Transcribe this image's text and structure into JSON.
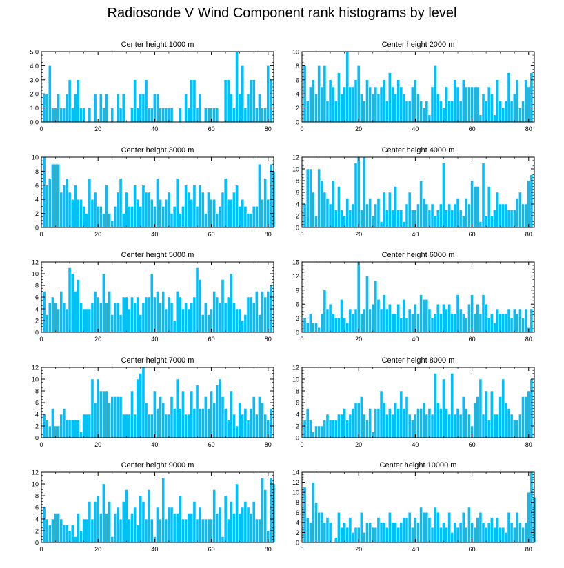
{
  "title": "Radiosonde V Wind Component rank histograms by level",
  "colors": {
    "bar": "#00bfff",
    "bar_edge": "#ffffff",
    "frame": "#000000"
  },
  "chart_data": [
    {
      "type": "bar",
      "title": "Center height 1000 m",
      "xlim": [
        0,
        82
      ],
      "ylim": [
        0,
        5
      ],
      "yticks": [
        0,
        1,
        2,
        3,
        4,
        5
      ],
      "ytick_labels": [
        "0.0",
        "1.0",
        "2.0",
        "3.0",
        "4.0",
        "5.0"
      ],
      "xticks": [
        0,
        20,
        40,
        60,
        80
      ],
      "values": [
        2,
        2,
        4,
        1,
        1,
        2,
        1,
        1,
        2,
        3,
        1,
        2,
        3,
        1,
        1,
        0,
        1,
        0,
        2,
        0,
        2,
        1,
        2,
        0,
        1,
        0,
        2,
        1,
        2,
        0,
        0,
        1,
        3,
        1,
        2,
        2,
        3,
        1,
        1,
        2,
        2,
        1,
        1,
        1,
        1,
        1,
        0,
        0,
        1,
        0,
        2,
        1,
        3,
        3,
        1,
        2,
        0,
        1,
        1,
        1,
        1,
        1,
        0,
        0,
        3,
        3,
        2,
        1,
        5,
        2,
        4,
        1,
        2,
        3,
        3,
        1,
        2,
        1,
        1,
        4,
        3
      ]
    },
    {
      "type": "bar",
      "title": "Center height 2000 m",
      "xlim": [
        0,
        82
      ],
      "ylim": [
        0,
        10
      ],
      "yticks": [
        0,
        2,
        4,
        6,
        8,
        10
      ],
      "ytick_labels": [
        "0",
        "2",
        "4",
        "6",
        "8",
        "10"
      ],
      "xticks": [
        0,
        20,
        40,
        60,
        80
      ],
      "values": [
        8,
        3,
        5,
        6,
        4,
        8,
        5,
        8,
        3,
        6,
        5,
        3,
        7,
        4,
        5,
        10,
        5,
        5,
        6,
        8,
        4,
        3,
        6,
        5,
        4,
        5,
        4,
        5,
        6,
        3,
        7,
        5,
        4,
        6,
        5,
        4,
        3,
        3,
        5,
        6,
        4,
        3,
        2,
        3,
        1,
        5,
        8,
        4,
        3,
        2,
        5,
        3,
        3,
        6,
        5,
        3,
        6,
        5,
        5,
        5,
        5,
        5,
        1,
        4,
        3,
        5,
        4,
        1,
        6,
        3,
        2,
        3,
        7,
        3,
        4,
        6,
        2,
        3,
        6,
        5,
        7
      ]
    },
    {
      "type": "bar",
      "title": "Center height 3000 m",
      "xlim": [
        0,
        82
      ],
      "ylim": [
        0,
        10
      ],
      "yticks": [
        0,
        2,
        4,
        6,
        8,
        10
      ],
      "ytick_labels": [
        "0",
        "2",
        "4",
        "6",
        "8",
        "10"
      ],
      "xticks": [
        0,
        20,
        40,
        60,
        80
      ],
      "values": [
        10,
        6,
        7,
        9,
        9,
        9,
        5,
        6,
        7,
        5,
        4,
        6,
        4,
        4,
        3,
        2,
        7,
        4,
        5,
        3,
        3,
        2,
        6,
        2,
        1,
        3,
        5,
        7,
        2,
        5,
        3,
        3,
        6,
        4,
        3,
        6,
        5,
        5,
        4,
        3,
        7,
        4,
        3,
        4,
        5,
        2,
        3,
        7,
        2,
        3,
        6,
        5,
        4,
        6,
        3,
        6,
        5,
        2,
        5,
        4,
        4,
        2,
        3,
        5,
        7,
        4,
        4,
        5,
        6,
        3,
        4,
        3,
        2,
        2,
        3,
        3,
        9,
        4,
        7,
        4,
        9,
        8
      ]
    },
    {
      "type": "bar",
      "title": "Center height 4000 m",
      "xlim": [
        0,
        82
      ],
      "ylim": [
        0,
        12
      ],
      "yticks": [
        0,
        2,
        4,
        6,
        8,
        10,
        12
      ],
      "ytick_labels": [
        "0",
        "2",
        "4",
        "6",
        "8",
        "10",
        "12"
      ],
      "xticks": [
        0,
        20,
        40,
        60,
        80
      ],
      "values": [
        4,
        10,
        10,
        6,
        2,
        10,
        8,
        6,
        5,
        4,
        8,
        3,
        7,
        3,
        2,
        5,
        3,
        4,
        11,
        12,
        3,
        12,
        4,
        5,
        2,
        4,
        5,
        1,
        6,
        3,
        6,
        3,
        7,
        3,
        3,
        1,
        4,
        6,
        3,
        3,
        4,
        8,
        5,
        4,
        3,
        4,
        2,
        3,
        4,
        11,
        3,
        4,
        3,
        4,
        5,
        3,
        2,
        5,
        4,
        8,
        7,
        7,
        1,
        11,
        2,
        7,
        2,
        3,
        6,
        4,
        4,
        4,
        3,
        3,
        3,
        5,
        6,
        4,
        4,
        8,
        9
      ]
    },
    {
      "type": "bar",
      "title": "Center height 5000 m",
      "xlim": [
        0,
        82
      ],
      "ylim": [
        0,
        12
      ],
      "yticks": [
        0,
        2,
        4,
        6,
        8,
        10,
        12
      ],
      "ytick_labels": [
        "0",
        "2",
        "4",
        "6",
        "8",
        "10",
        "12"
      ],
      "xticks": [
        0,
        20,
        40,
        60,
        80
      ],
      "values": [
        7,
        3,
        5,
        6,
        5,
        4,
        7,
        5,
        4,
        11,
        10,
        7,
        9,
        5,
        4,
        4,
        4,
        5,
        7,
        6,
        5,
        10,
        5,
        7,
        3,
        5,
        5,
        3,
        6,
        6,
        4,
        6,
        5,
        6,
        3,
        5,
        6,
        6,
        10,
        6,
        7,
        5,
        7,
        4,
        6,
        5,
        2,
        7,
        6,
        4,
        5,
        4,
        5,
        6,
        11,
        9,
        3,
        5,
        3,
        4,
        7,
        6,
        5,
        9,
        5,
        6,
        10,
        5,
        4,
        4,
        2,
        3,
        6,
        6,
        5,
        7,
        3,
        7,
        6,
        7,
        8
      ]
    },
    {
      "type": "bar",
      "title": "Center height 6000 m",
      "xlim": [
        0,
        82
      ],
      "ylim": [
        0,
        15
      ],
      "yticks": [
        0,
        3,
        6,
        9,
        12,
        15
      ],
      "ytick_labels": [
        "0",
        "3",
        "6",
        "9",
        "12",
        "15"
      ],
      "xticks": [
        0,
        20,
        40,
        60,
        80
      ],
      "values": [
        3,
        2,
        4,
        2,
        2,
        1,
        4,
        9,
        5,
        6,
        4,
        3,
        3,
        7,
        3,
        2,
        5,
        4,
        5,
        15,
        4,
        5,
        12,
        5,
        6,
        11,
        7,
        5,
        8,
        5,
        6,
        4,
        4,
        6,
        3,
        7,
        3,
        5,
        4,
        6,
        4,
        8,
        7,
        7,
        5,
        3,
        4,
        6,
        4,
        6,
        5,
        6,
        4,
        4,
        8,
        5,
        4,
        3,
        6,
        8,
        4,
        6,
        4,
        8,
        6,
        3,
        4,
        2,
        5,
        4,
        4,
        4,
        5,
        3,
        5,
        4,
        5,
        3,
        5,
        1,
        5
      ]
    },
    {
      "type": "bar",
      "title": "Center height 7000 m",
      "xlim": [
        0,
        82
      ],
      "ylim": [
        0,
        12
      ],
      "yticks": [
        0,
        2,
        4,
        6,
        8,
        10,
        12
      ],
      "ytick_labels": [
        "0",
        "2",
        "4",
        "6",
        "8",
        "10",
        "12"
      ],
      "xticks": [
        0,
        20,
        40,
        60,
        80
      ],
      "values": [
        4,
        3,
        2,
        5,
        2,
        2,
        4,
        5,
        3,
        3,
        3,
        3,
        3,
        1,
        4,
        4,
        4,
        10,
        6,
        10,
        8,
        8,
        8,
        6,
        7,
        7,
        7,
        7,
        4,
        4,
        4,
        8,
        4,
        10,
        11,
        12,
        6,
        4,
        4,
        8,
        5,
        7,
        6,
        4,
        4,
        7,
        5,
        10,
        5,
        8,
        4,
        4,
        8,
        5,
        9,
        5,
        5,
        7,
        5,
        8,
        6,
        9,
        10,
        7,
        5,
        3,
        8,
        4,
        2,
        6,
        4,
        5,
        3,
        5,
        7,
        4,
        7,
        6,
        4,
        3,
        5
      ]
    },
    {
      "type": "bar",
      "title": "Center height 8000 m",
      "xlim": [
        0,
        82
      ],
      "ylim": [
        0,
        12
      ],
      "yticks": [
        0,
        2,
        4,
        6,
        8,
        10,
        12
      ],
      "ytick_labels": [
        "0",
        "2",
        "4",
        "6",
        "8",
        "10",
        "12"
      ],
      "xticks": [
        0,
        20,
        40,
        60,
        80
      ],
      "values": [
        3,
        5,
        3,
        1,
        2,
        2,
        2,
        3,
        4,
        3,
        3,
        3,
        4,
        4,
        5,
        3,
        4,
        5,
        6,
        6,
        7,
        4,
        3,
        5,
        1,
        5,
        5,
        8,
        6,
        4,
        5,
        4,
        6,
        5,
        8,
        5,
        7,
        4,
        3,
        4,
        5,
        5,
        6,
        4,
        5,
        4,
        11,
        6,
        5,
        10,
        5,
        4,
        11,
        4,
        5,
        4,
        7,
        5,
        4,
        2,
        6,
        7,
        10,
        4,
        8,
        3,
        8,
        4,
        4,
        7,
        10,
        6,
        5,
        4,
        3,
        3,
        4,
        7,
        7,
        8,
        10
      ]
    },
    {
      "type": "bar",
      "title": "Center height 9000 m",
      "xlim": [
        0,
        82
      ],
      "ylim": [
        0,
        12
      ],
      "yticks": [
        0,
        2,
        4,
        6,
        8,
        10,
        12
      ],
      "ytick_labels": [
        "0",
        "2",
        "4",
        "6",
        "8",
        "10",
        "12"
      ],
      "xticks": [
        0,
        20,
        40,
        60,
        80
      ],
      "values": [
        6,
        4,
        3,
        4,
        5,
        5,
        4,
        3,
        3,
        2,
        3,
        1,
        5,
        2,
        4,
        4,
        7,
        4,
        7,
        8,
        5,
        10,
        5,
        7,
        1,
        5,
        6,
        4,
        7,
        9,
        4,
        5,
        6,
        3,
        8,
        7,
        4,
        9,
        4,
        1,
        6,
        4,
        11,
        4,
        6,
        6,
        5,
        5,
        8,
        4,
        4,
        5,
        5,
        7,
        4,
        6,
        4,
        4,
        4,
        4,
        9,
        5,
        6,
        1,
        8,
        4,
        7,
        5,
        10,
        5,
        6,
        7,
        6,
        5,
        7,
        4,
        4,
        11,
        9,
        2,
        11,
        10
      ]
    },
    {
      "type": "bar",
      "title": "Center height 10000 m",
      "xlim": [
        0,
        82
      ],
      "ylim": [
        0,
        14
      ],
      "yticks": [
        0,
        2,
        4,
        6,
        8,
        10,
        12,
        14
      ],
      "ytick_labels": [
        "0",
        "2",
        "4",
        "6",
        "8",
        "10",
        "12",
        "14"
      ],
      "xticks": [
        0,
        20,
        40,
        60,
        80
      ],
      "values": [
        11,
        5,
        4,
        12,
        8,
        6,
        6,
        4,
        5,
        4,
        0,
        1,
        6,
        3,
        4,
        3,
        5,
        2,
        3,
        3,
        6,
        2,
        4,
        4,
        3,
        3,
        5,
        4,
        4,
        3,
        6,
        4,
        4,
        3,
        4,
        5,
        5,
        6,
        3,
        5,
        4,
        7,
        6,
        6,
        5,
        3,
        7,
        6,
        3,
        4,
        3,
        6,
        2,
        4,
        3,
        4,
        6,
        3,
        7,
        4,
        3,
        5,
        6,
        4,
        3,
        4,
        5,
        3,
        5,
        3,
        3,
        2,
        6,
        4,
        3,
        6,
        4,
        3,
        4,
        10,
        14,
        9
      ]
    }
  ]
}
